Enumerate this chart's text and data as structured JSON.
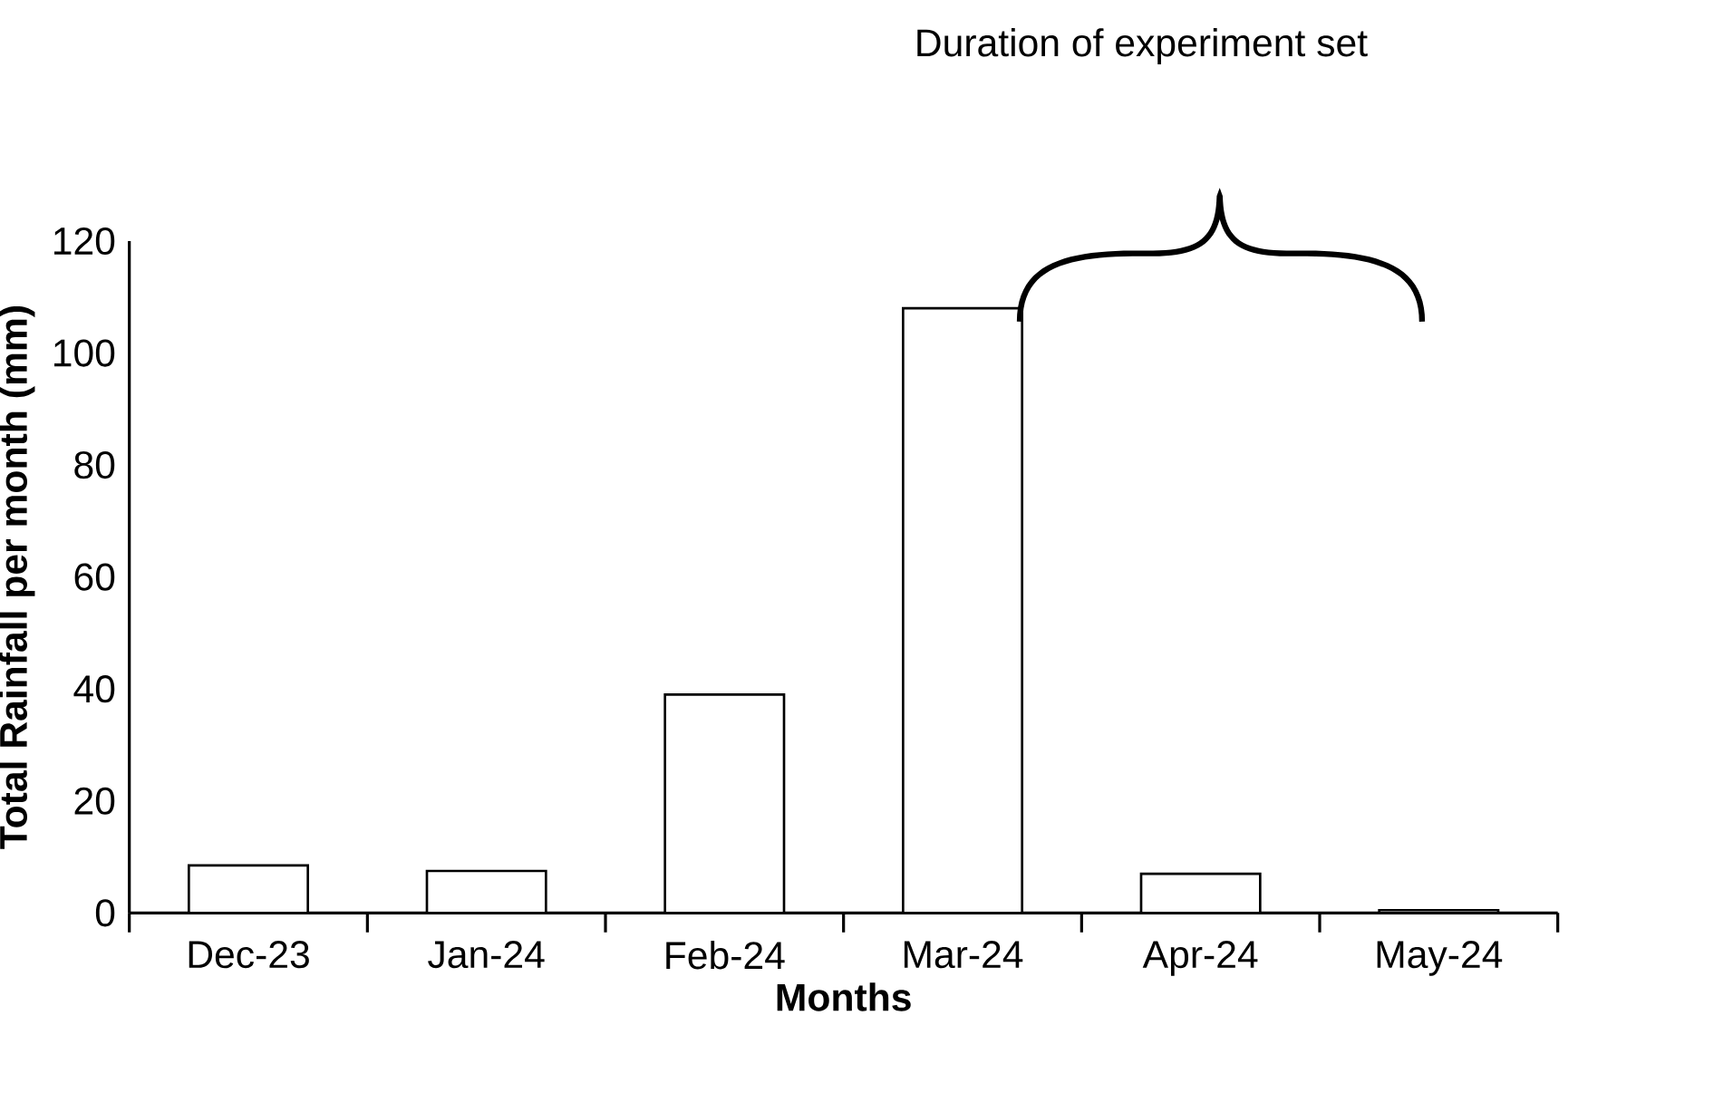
{
  "chart_data": {
    "type": "bar",
    "xlabel": "Months",
    "ylabel": "Total Rainfall per month (mm)",
    "categories": [
      "Dec-23",
      "Jan-24",
      "Feb-24",
      "Mar-24",
      "Apr-24",
      "May-24"
    ],
    "values": [
      8.5,
      7.5,
      39,
      108,
      7,
      0.5
    ],
    "color": "#ffffff",
    "ylim": [
      0,
      120
    ],
    "yticks": [
      0,
      20,
      40,
      60,
      80,
      100,
      120
    ],
    "annotations": [
      "Duration of experiment set"
    ]
  }
}
